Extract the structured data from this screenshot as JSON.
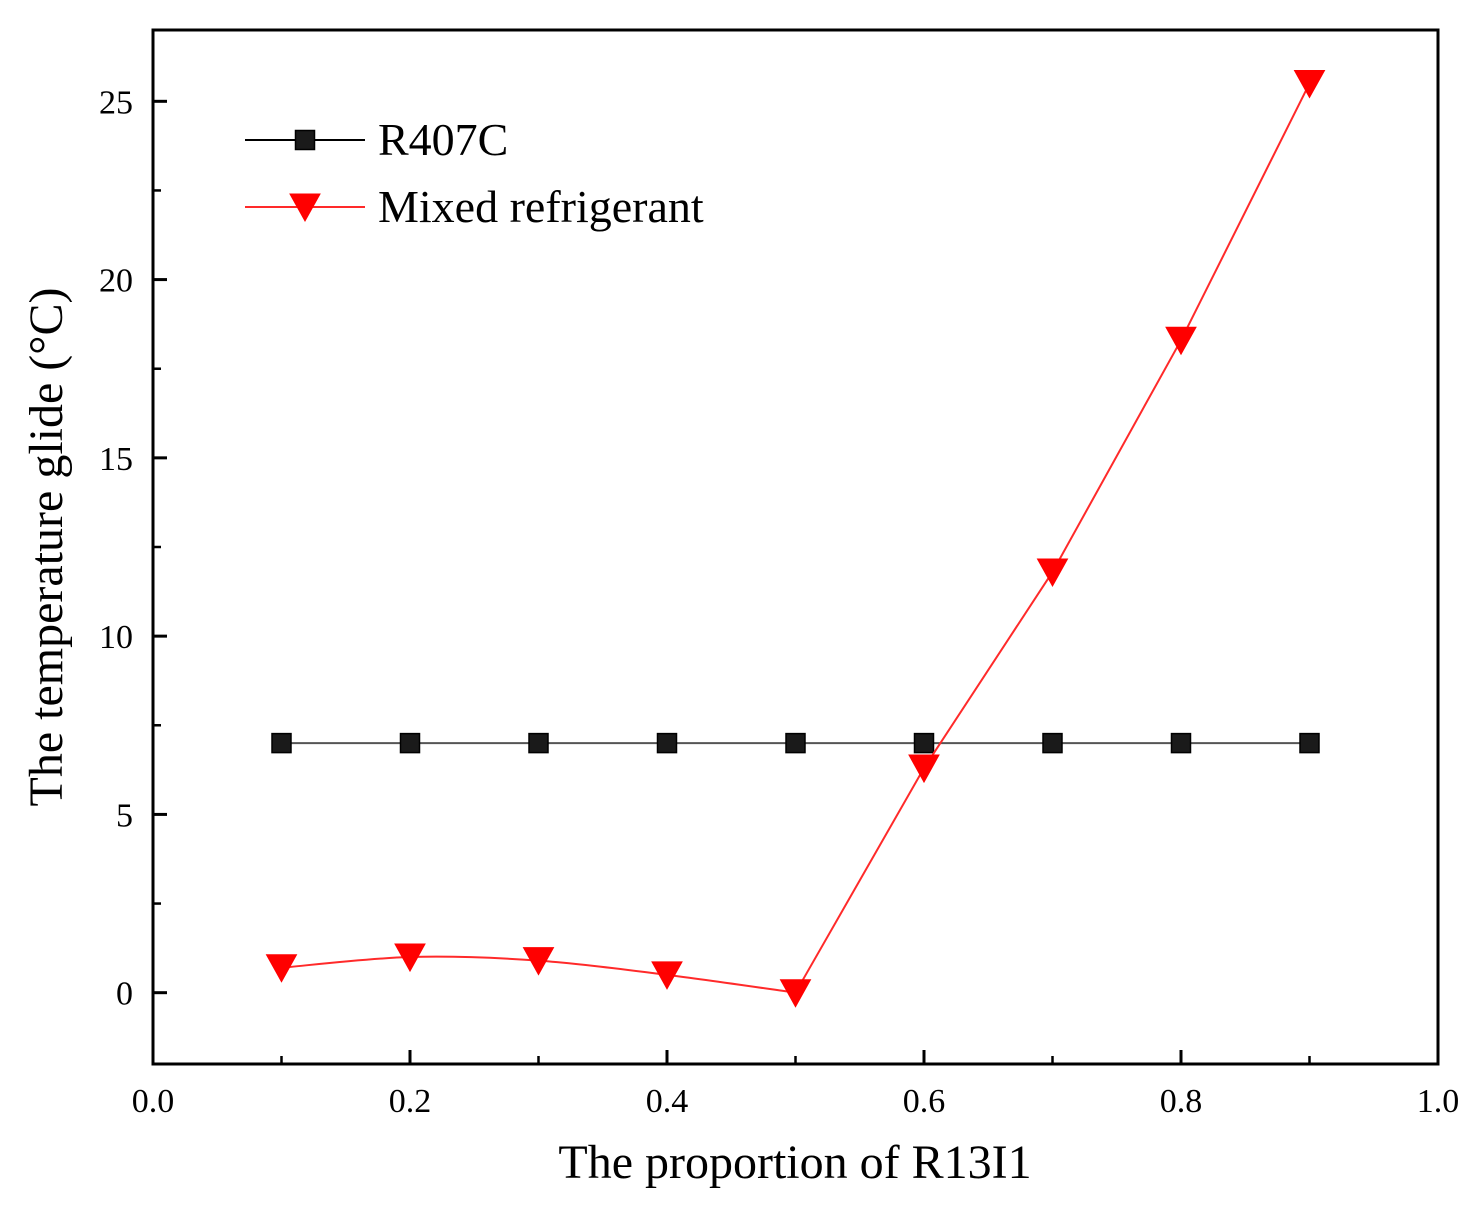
{
  "chart_data": {
    "type": "line",
    "title": "",
    "xlabel": "The proportion of R13I1",
    "ylabel": "The temperature glide (°C)",
    "xlim": [
      0.0,
      1.0
    ],
    "ylim": [
      -2,
      27
    ],
    "x_ticks": [
      0.0,
      0.2,
      0.4,
      0.6,
      0.8,
      1.0
    ],
    "x_tick_labels": [
      "0.0",
      "0.2",
      "0.4",
      "0.6",
      "0.8",
      "1.0"
    ],
    "y_ticks": [
      0,
      5,
      10,
      15,
      20,
      25
    ],
    "y_tick_labels": [
      "0",
      "5",
      "10",
      "15",
      "20",
      "25"
    ],
    "grid": false,
    "legend_position": "top-left",
    "series": [
      {
        "name": "R407C",
        "marker": "square",
        "color": "#000000",
        "marker_fill": "#1a1a1a",
        "line_color": "#555555",
        "x": [
          0.1,
          0.2,
          0.3,
          0.4,
          0.5,
          0.6,
          0.7,
          0.8,
          0.9
        ],
        "values": [
          7.0,
          7.0,
          7.0,
          7.0,
          7.0,
          7.0,
          7.0,
          7.0,
          7.0
        ]
      },
      {
        "name": "Mixed refrigerant",
        "marker": "triangle-down",
        "color": "#ff0000",
        "marker_fill": "#ff0000",
        "line_color": "#ff2a2a",
        "x": [
          0.1,
          0.2,
          0.3,
          0.4,
          0.5,
          0.6,
          0.7,
          0.8,
          0.9
        ],
        "values": [
          0.7,
          1.0,
          0.9,
          0.5,
          0.0,
          6.3,
          11.8,
          18.3,
          25.5
        ]
      }
    ]
  }
}
